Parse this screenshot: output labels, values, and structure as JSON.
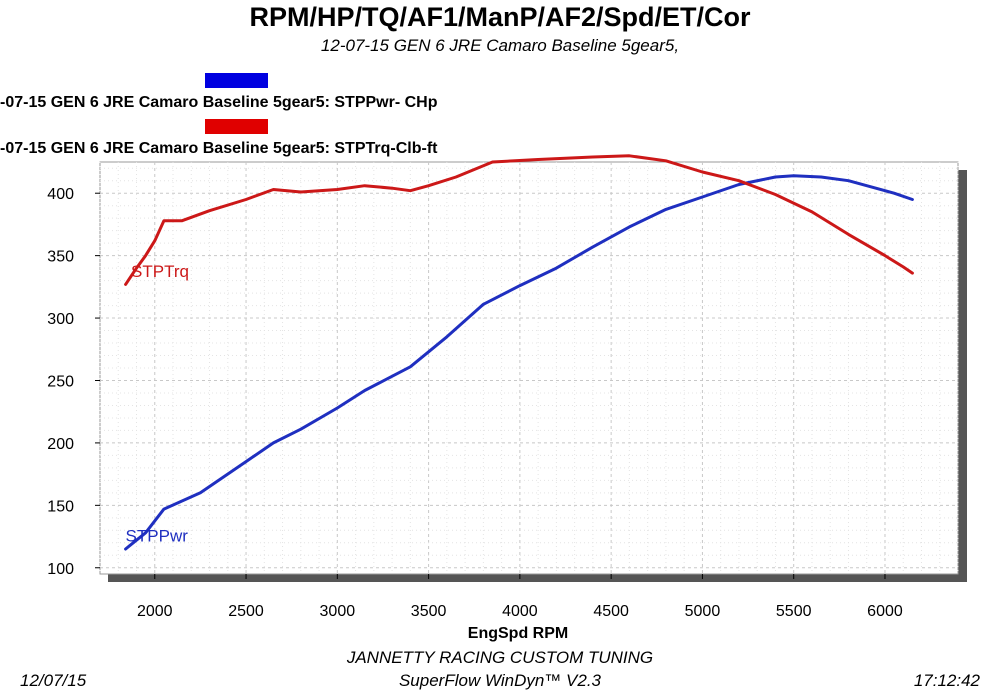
{
  "header": {
    "title": "RPM/HP/TQ/AF1/ManP/AF2/Spd/ET/Cor",
    "subtitle": "12-07-15 GEN 6 JRE Camaro Baseline 5gear5,"
  },
  "legend": {
    "items": [
      {
        "label": "-07-15 GEN 6 JRE Camaro Baseline 5gear5: STPPwr- CHp",
        "color": "#0000e0"
      },
      {
        "label": "-07-15 GEN 6 JRE Camaro Baseline 5gear5: STPTrq-Clb-ft",
        "color": "#e00000"
      }
    ]
  },
  "footer": {
    "line1": "JANNETTY RACING CUSTOM TUNING",
    "line2": "SuperFlow WinDyn™ V2.3",
    "date": "12/07/15",
    "time": "17:12:42"
  },
  "chart_data": {
    "type": "line",
    "xlabel": "EngSpd  RPM",
    "ylabel": "",
    "xlim": [
      1700,
      6400
    ],
    "ylim": [
      95,
      425
    ],
    "xticks": [
      2000,
      2500,
      3000,
      3500,
      4000,
      4500,
      5000,
      5500,
      6000
    ],
    "yticks": [
      100,
      150,
      200,
      250,
      300,
      350,
      400
    ],
    "grid": true,
    "series": [
      {
        "name": "STPPwr",
        "color": "#1f2fc0",
        "x": [
          1840,
          1950,
          2050,
          2250,
          2500,
          2650,
          2800,
          3000,
          3150,
          3400,
          3600,
          3800,
          4000,
          4200,
          4400,
          4600,
          4800,
          5000,
          5200,
          5400,
          5500,
          5650,
          5800,
          5950,
          6050,
          6150
        ],
        "y": [
          115,
          128,
          147,
          160,
          185,
          200,
          211,
          228,
          242,
          261,
          285,
          311,
          326,
          340,
          357,
          373,
          387,
          397,
          407,
          413,
          414,
          413,
          410,
          404,
          400,
          395
        ]
      },
      {
        "name": "STPTrq",
        "color": "#cc1818",
        "x": [
          1840,
          1900,
          1950,
          2000,
          2050,
          2150,
          2300,
          2500,
          2650,
          2800,
          3000,
          3150,
          3300,
          3400,
          3500,
          3650,
          3850,
          4100,
          4400,
          4600,
          4800,
          5000,
          5200,
          5400,
          5600,
          5800,
          6000,
          6100,
          6150
        ],
        "y": [
          327,
          340,
          350,
          362,
          378,
          378,
          386,
          395,
          403,
          401,
          403,
          406,
          404,
          402,
          406,
          413,
          425,
          427,
          429,
          430,
          426,
          417,
          410,
          399,
          385,
          367,
          350,
          341,
          336
        ]
      }
    ],
    "annotations": [
      {
        "text": "STPTrq",
        "x": 1870,
        "y": 333,
        "color": "#cc1818"
      },
      {
        "text": "STPPwr",
        "x": 1840,
        "y": 121,
        "color": "#1f2fc0"
      }
    ]
  }
}
